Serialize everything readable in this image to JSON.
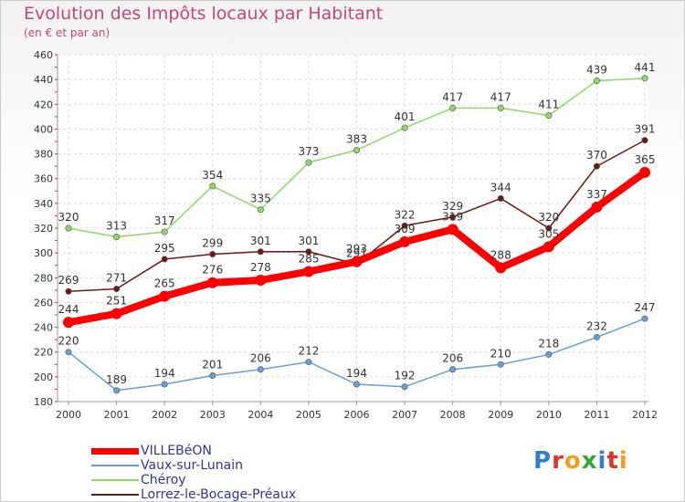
{
  "header": {
    "title": "Evolution des Impôts locaux par Habitant",
    "subtitle": "(en € et par an)"
  },
  "logo": {
    "text": "Proxiti"
  },
  "chart_data": {
    "type": "line",
    "title": "Evolution des Impôts locaux par Habitant",
    "subtitle": "(en € et par an)",
    "xlabel": "",
    "ylabel": "",
    "x": [
      2000,
      2001,
      2002,
      2003,
      2004,
      2005,
      2006,
      2007,
      2008,
      2009,
      2010,
      2011,
      2012
    ],
    "ylim": [
      180,
      460
    ],
    "yticks": [
      180,
      200,
      220,
      240,
      260,
      280,
      300,
      320,
      340,
      360,
      380,
      400,
      420,
      440,
      460
    ],
    "grid": true,
    "legend_position": "bottom-left",
    "series": [
      {
        "name": "VILLEBéON",
        "color": "#ff0000",
        "values": [
          244,
          251,
          265,
          276,
          278,
          285,
          293,
          309,
          319,
          288,
          305,
          337,
          365
        ]
      },
      {
        "name": "Vaux-sur-Lunain",
        "color": "#6a9fd4",
        "values": [
          220,
          189,
          194,
          201,
          206,
          212,
          194,
          192,
          206,
          210,
          218,
          232,
          247
        ]
      },
      {
        "name": "Chéroy",
        "color": "#8fd86a",
        "values": [
          320,
          313,
          317,
          354,
          335,
          373,
          383,
          401,
          417,
          417,
          411,
          439,
          441
        ]
      },
      {
        "name": "Lorrez-le-Bocage-Préaux",
        "color": "#6b1a1a",
        "values": [
          269,
          271,
          295,
          299,
          301,
          301,
          291,
          322,
          329,
          344,
          320,
          370,
          391
        ]
      }
    ]
  }
}
